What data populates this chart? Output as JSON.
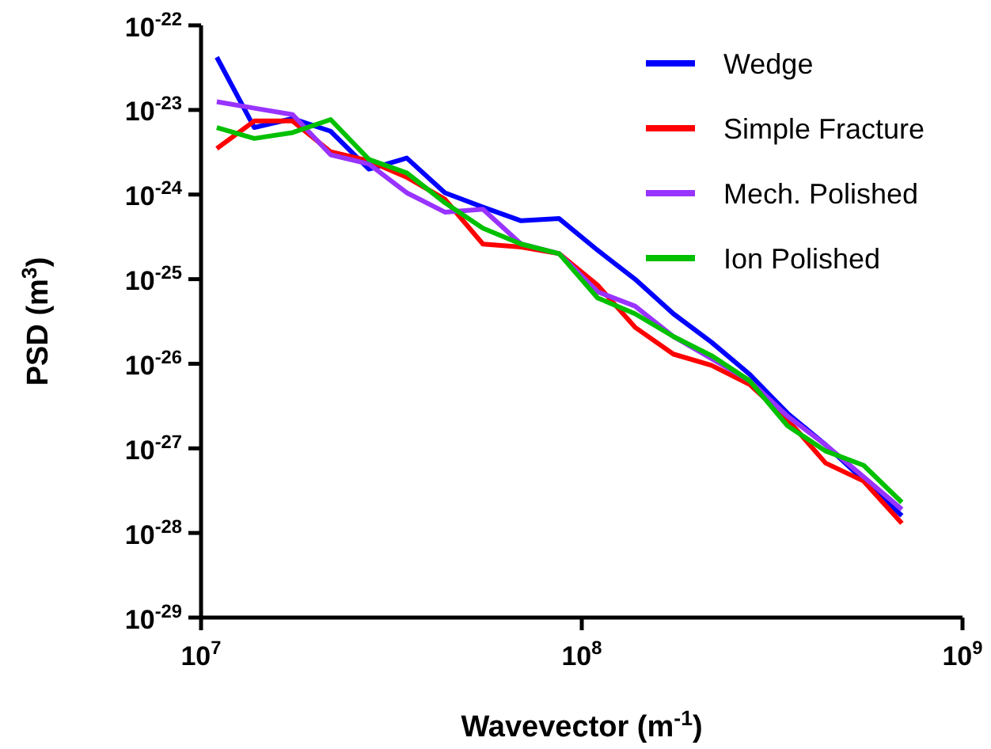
{
  "chart_data": {
    "type": "line",
    "xlabel": "Wavevector (m$^{-1}$)",
    "ylabel": "PSD (m$^{3}$)",
    "log": "xy",
    "grid": false,
    "legend": "top right",
    "marker": "none",
    "line_style": "solid",
    "x": [
      11000000.0,
      13800000.0,
      17400000.0,
      21900000.0,
      27600000.0,
      34700000.0,
      43700000.0,
      55000000.0,
      69300000.0,
      87200000.0,
      110000000.0,
      138000000.0,
      174000000.0,
      219000000.0,
      276000000.0,
      347000000.0,
      437000000.0,
      550000000.0,
      693000000.0
    ],
    "xlim": [
      10000000.0,
      1000000000.0
    ],
    "xticks": [
      {
        "value": 10000000.0,
        "label": "10$^{7}$"
      },
      {
        "value": 100000000.0,
        "label": "10$^{8}$"
      },
      {
        "value": 1000000000.0,
        "label": "10$^{9}$"
      }
    ],
    "ylim": [
      1e-29,
      1e-22
    ],
    "yticks": [
      {
        "value": 1e-29,
        "label": "10$^{-29}$"
      },
      {
        "value": 1e-28,
        "label": "10$^{-28}$"
      },
      {
        "value": 1e-27,
        "label": "10$^{-27}$"
      },
      {
        "value": 1e-26,
        "label": "10$^{-26}$"
      },
      {
        "value": 1e-25,
        "label": "10$^{-25}$"
      },
      {
        "value": 1e-24,
        "label": "10$^{-24}$"
      },
      {
        "value": 1e-23,
        "label": "10$^{-23}$"
      },
      {
        "value": 1e-22,
        "label": "10$^{-22}$"
      }
    ],
    "series": [
      {
        "name": "Wedge",
        "color": "#0000ff",
        "values": [
          4.2e-23,
          6.2e-24,
          7.9e-24,
          5.6e-24,
          2e-24,
          2.7e-24,
          1.05e-24,
          7.1e-25,
          4.9e-25,
          5.2e-25,
          2.2e-25,
          1e-25,
          3.9e-26,
          1.8e-26,
          7.5e-27,
          2.6e-27,
          1.1e-27,
          4.2e-28,
          1.6e-28
        ]
      },
      {
        "name": "Simple Fracture",
        "color": "#ff0000",
        "values": [
          3.5e-24,
          7.4e-24,
          7.4e-24,
          3.2e-24,
          2.5e-24,
          1.6e-24,
          8.8e-25,
          2.6e-25,
          2.4e-25,
          2e-25,
          8.5e-26,
          2.7e-26,
          1.3e-26,
          9.6e-27,
          5.7e-27,
          2.2e-27,
          6.7e-28,
          4.1e-28,
          1.3e-28
        ]
      },
      {
        "name": "Mech. Polished",
        "color": "#9933ff",
        "values": [
          1.25e-23,
          1.05e-23,
          8.8e-24,
          2.95e-24,
          2.3e-24,
          1.05e-24,
          6.2e-25,
          6.7e-25,
          2.6e-25,
          2e-25,
          7.1e-26,
          4.8e-26,
          2.1e-26,
          1.15e-26,
          6.3e-27,
          2.4e-27,
          1.1e-27,
          4.6e-28,
          1.9e-28
        ]
      },
      {
        "name": "Ion Polished",
        "color": "#00c000",
        "values": [
          6.2e-24,
          4.6e-24,
          5.4e-24,
          7.7e-24,
          2.6e-24,
          1.8e-24,
          8e-25,
          4e-25,
          2.6e-25,
          2e-25,
          6e-26,
          3.9e-26,
          2.1e-26,
          1.25e-26,
          6.3e-27,
          1.85e-27,
          9.3e-28,
          6.3e-28,
          2.3e-28
        ]
      }
    ]
  }
}
